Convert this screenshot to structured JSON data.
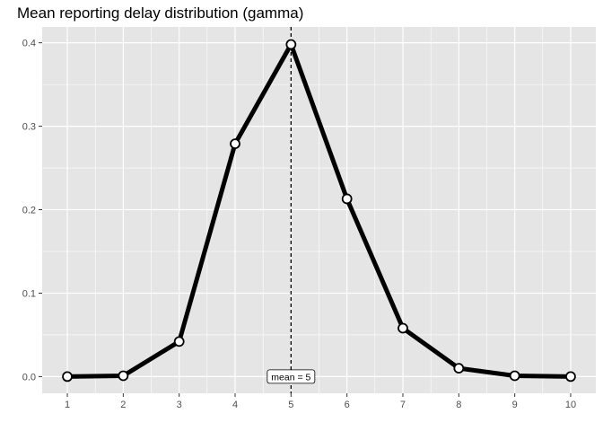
{
  "chart_data": {
    "type": "line",
    "title": "Mean reporting delay distribution (gamma)",
    "xlabel": "",
    "ylabel": "",
    "x": [
      1,
      2,
      3,
      4,
      5,
      6,
      7,
      8,
      9,
      10
    ],
    "series": [
      {
        "values": [
          0.0,
          0.001,
          0.042,
          0.279,
          0.398,
          0.213,
          0.058,
          0.01,
          0.001,
          0.0
        ]
      }
    ],
    "xticks": [
      1,
      2,
      3,
      4,
      5,
      6,
      7,
      8,
      9,
      10
    ],
    "yticks": [
      0.0,
      0.1,
      0.2,
      0.3,
      0.4
    ],
    "ytick_labels": [
      "0.0",
      "0.1",
      "0.2",
      "0.3",
      "0.4"
    ],
    "xlim": [
      0.55,
      10.45
    ],
    "ylim": [
      -0.02,
      0.419
    ],
    "grid": true,
    "vline": {
      "x": 5,
      "style": "dashed"
    },
    "annotation": {
      "x": 5,
      "y": 0.0,
      "text": "mean = 5"
    },
    "colors": {
      "panel": "#e5e5e5",
      "grid": "#ffffff",
      "line": "#000000",
      "marker_fill": "#ffffff",
      "tick": "#333333"
    }
  }
}
